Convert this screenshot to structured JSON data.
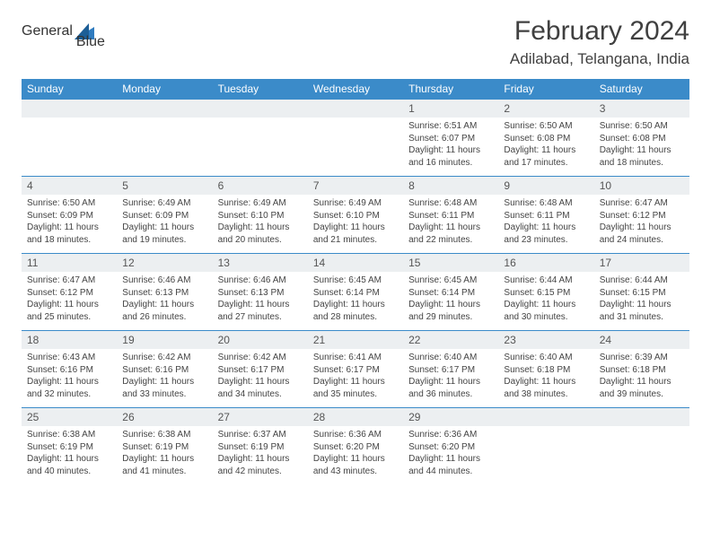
{
  "logo": {
    "text1": "General",
    "text2": "Blue"
  },
  "title": "February 2024",
  "location": "Adilabad, Telangana, India",
  "colors": {
    "header_bg": "#3b8bc9",
    "header_text": "#ffffff",
    "daynum_bg": "#eceff1",
    "border": "#3b8bc9",
    "title_color": "#404040",
    "body_text": "#444444",
    "logo_gray": "#6b6b6b",
    "logo_blue": "#2f7bbf"
  },
  "weekdays": [
    "Sunday",
    "Monday",
    "Tuesday",
    "Wednesday",
    "Thursday",
    "Friday",
    "Saturday"
  ],
  "weeks": [
    [
      {
        "blank": true
      },
      {
        "blank": true
      },
      {
        "blank": true
      },
      {
        "blank": true
      },
      {
        "day": "1",
        "sunrise": "6:51 AM",
        "sunset": "6:07 PM",
        "daylight": "11 hours and 16 minutes."
      },
      {
        "day": "2",
        "sunrise": "6:50 AM",
        "sunset": "6:08 PM",
        "daylight": "11 hours and 17 minutes."
      },
      {
        "day": "3",
        "sunrise": "6:50 AM",
        "sunset": "6:08 PM",
        "daylight": "11 hours and 18 minutes."
      }
    ],
    [
      {
        "day": "4",
        "sunrise": "6:50 AM",
        "sunset": "6:09 PM",
        "daylight": "11 hours and 18 minutes."
      },
      {
        "day": "5",
        "sunrise": "6:49 AM",
        "sunset": "6:09 PM",
        "daylight": "11 hours and 19 minutes."
      },
      {
        "day": "6",
        "sunrise": "6:49 AM",
        "sunset": "6:10 PM",
        "daylight": "11 hours and 20 minutes."
      },
      {
        "day": "7",
        "sunrise": "6:49 AM",
        "sunset": "6:10 PM",
        "daylight": "11 hours and 21 minutes."
      },
      {
        "day": "8",
        "sunrise": "6:48 AM",
        "sunset": "6:11 PM",
        "daylight": "11 hours and 22 minutes."
      },
      {
        "day": "9",
        "sunrise": "6:48 AM",
        "sunset": "6:11 PM",
        "daylight": "11 hours and 23 minutes."
      },
      {
        "day": "10",
        "sunrise": "6:47 AM",
        "sunset": "6:12 PM",
        "daylight": "11 hours and 24 minutes."
      }
    ],
    [
      {
        "day": "11",
        "sunrise": "6:47 AM",
        "sunset": "6:12 PM",
        "daylight": "11 hours and 25 minutes."
      },
      {
        "day": "12",
        "sunrise": "6:46 AM",
        "sunset": "6:13 PM",
        "daylight": "11 hours and 26 minutes."
      },
      {
        "day": "13",
        "sunrise": "6:46 AM",
        "sunset": "6:13 PM",
        "daylight": "11 hours and 27 minutes."
      },
      {
        "day": "14",
        "sunrise": "6:45 AM",
        "sunset": "6:14 PM",
        "daylight": "11 hours and 28 minutes."
      },
      {
        "day": "15",
        "sunrise": "6:45 AM",
        "sunset": "6:14 PM",
        "daylight": "11 hours and 29 minutes."
      },
      {
        "day": "16",
        "sunrise": "6:44 AM",
        "sunset": "6:15 PM",
        "daylight": "11 hours and 30 minutes."
      },
      {
        "day": "17",
        "sunrise": "6:44 AM",
        "sunset": "6:15 PM",
        "daylight": "11 hours and 31 minutes."
      }
    ],
    [
      {
        "day": "18",
        "sunrise": "6:43 AM",
        "sunset": "6:16 PM",
        "daylight": "11 hours and 32 minutes."
      },
      {
        "day": "19",
        "sunrise": "6:42 AM",
        "sunset": "6:16 PM",
        "daylight": "11 hours and 33 minutes."
      },
      {
        "day": "20",
        "sunrise": "6:42 AM",
        "sunset": "6:17 PM",
        "daylight": "11 hours and 34 minutes."
      },
      {
        "day": "21",
        "sunrise": "6:41 AM",
        "sunset": "6:17 PM",
        "daylight": "11 hours and 35 minutes."
      },
      {
        "day": "22",
        "sunrise": "6:40 AM",
        "sunset": "6:17 PM",
        "daylight": "11 hours and 36 minutes."
      },
      {
        "day": "23",
        "sunrise": "6:40 AM",
        "sunset": "6:18 PM",
        "daylight": "11 hours and 38 minutes."
      },
      {
        "day": "24",
        "sunrise": "6:39 AM",
        "sunset": "6:18 PM",
        "daylight": "11 hours and 39 minutes."
      }
    ],
    [
      {
        "day": "25",
        "sunrise": "6:38 AM",
        "sunset": "6:19 PM",
        "daylight": "11 hours and 40 minutes."
      },
      {
        "day": "26",
        "sunrise": "6:38 AM",
        "sunset": "6:19 PM",
        "daylight": "11 hours and 41 minutes."
      },
      {
        "day": "27",
        "sunrise": "6:37 AM",
        "sunset": "6:19 PM",
        "daylight": "11 hours and 42 minutes."
      },
      {
        "day": "28",
        "sunrise": "6:36 AM",
        "sunset": "6:20 PM",
        "daylight": "11 hours and 43 minutes."
      },
      {
        "day": "29",
        "sunrise": "6:36 AM",
        "sunset": "6:20 PM",
        "daylight": "11 hours and 44 minutes."
      },
      {
        "blank": true
      },
      {
        "blank": true
      }
    ]
  ],
  "labels": {
    "sunrise": "Sunrise:",
    "sunset": "Sunset:",
    "daylight": "Daylight:"
  }
}
